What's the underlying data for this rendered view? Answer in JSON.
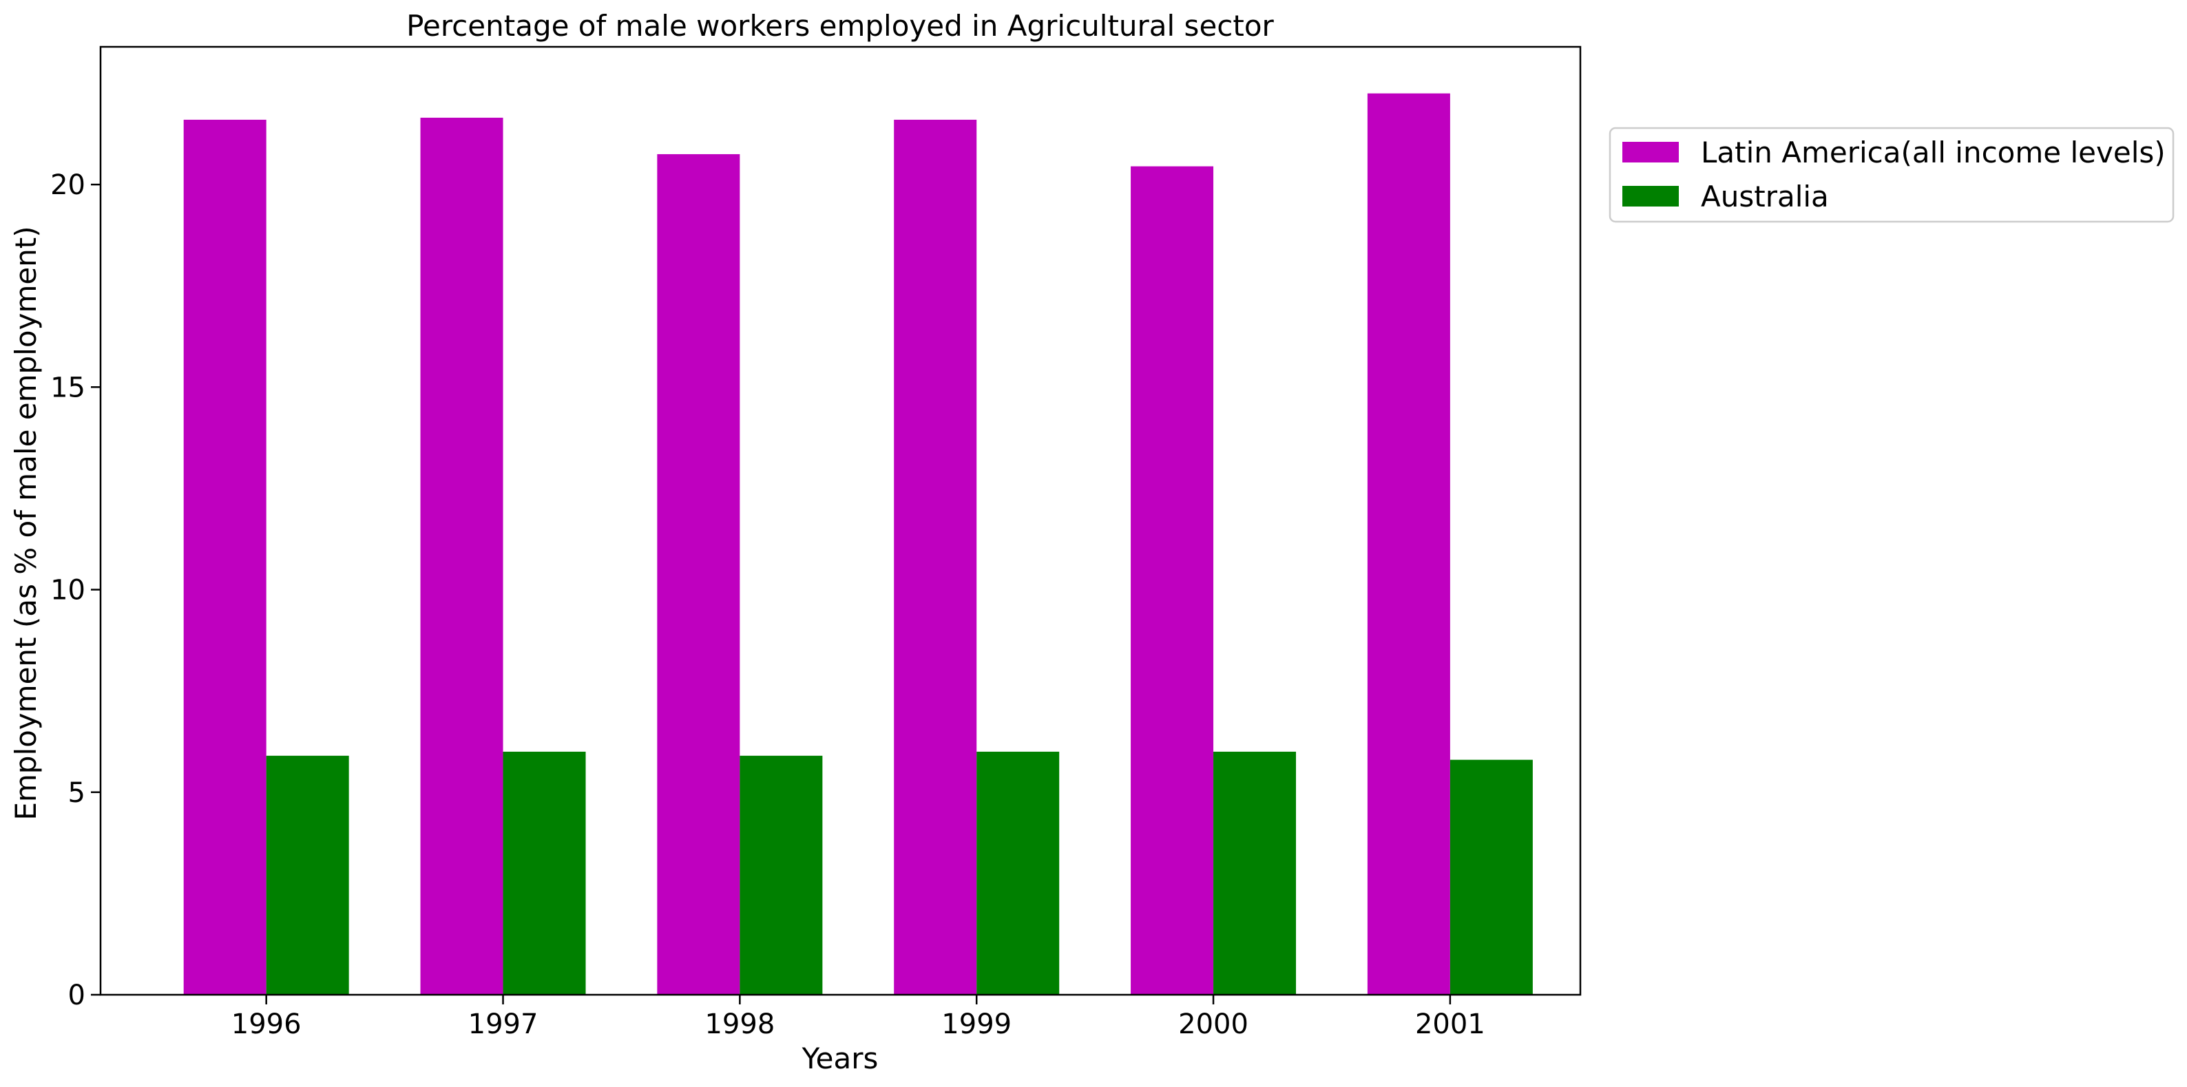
{
  "chart_data": {
    "type": "bar",
    "title": "Percentage of male workers employed in Agricultural sector",
    "xlabel": "Years",
    "ylabel": "Employment (as % of male employment)",
    "categories": [
      "1996",
      "1997",
      "1998",
      "1999",
      "2000",
      "2001"
    ],
    "series": [
      {
        "name": "Latin America(all income levels)",
        "color": "#bf00bf",
        "values": [
          21.6,
          21.65,
          20.75,
          21.6,
          20.45,
          22.25
        ]
      },
      {
        "name": "Australia",
        "color": "#008000",
        "values": [
          5.9,
          6.0,
          5.9,
          6.0,
          6.0,
          5.8
        ]
      }
    ],
    "ylim": [
      0,
      23.4
    ],
    "yticks": [
      0,
      5,
      10,
      15,
      20
    ],
    "grid": false,
    "legend_position": "outside-top-right"
  }
}
